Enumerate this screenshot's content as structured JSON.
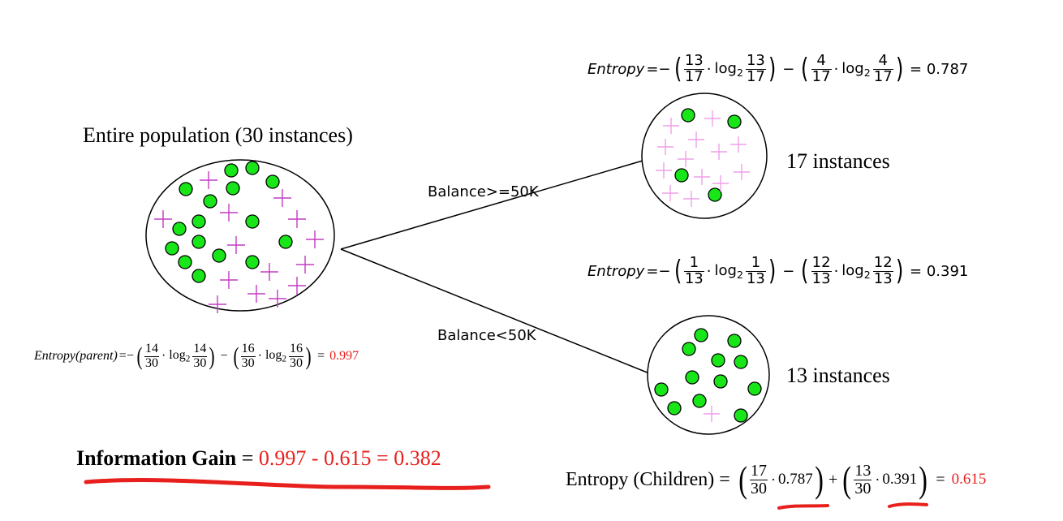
{
  "title_root": "Entire population (30 instances)",
  "labels": {
    "left_node": "17 instances",
    "right_node": "13 instances",
    "edge_top": "Balance>=50K",
    "edge_bottom": "Balance<50K"
  },
  "entropy_top": {
    "prefix": "Entropy",
    "eq_neg": "=−",
    "f1_num": "13",
    "f1_den": "17",
    "f2_num": "13",
    "f2_den": "17",
    "f3_num": "4",
    "f3_den": "17",
    "f4_num": "4",
    "f4_den": "17",
    "dot": "·",
    "log": "log",
    "logsub": "2",
    "minus": "−",
    "result": "= 0.787"
  },
  "entropy_bottom": {
    "prefix": "Entropy",
    "eq_neg": "=−",
    "f1_num": "1",
    "f1_den": "13",
    "f2_num": "1",
    "f2_den": "13",
    "f3_num": "12",
    "f3_den": "13",
    "f4_num": "12",
    "f4_den": "13",
    "dot": "·",
    "log": "log",
    "logsub": "2",
    "minus": "−",
    "result": "= 0.391"
  },
  "entropy_parent": {
    "prefix": "Entropy(parent)",
    "eq_neg": "=−",
    "f1_num": "14",
    "f1_den": "30",
    "f2_num": "14",
    "f2_den": "30",
    "f3_num": "16",
    "f3_den": "30",
    "f4_num": "16",
    "f4_den": "30",
    "dot": "·",
    "log": "log",
    "logsub": "2",
    "minus": "−",
    "eq": "=",
    "result": "0.997"
  },
  "info_gain": {
    "label": "Information Gain",
    "eq1": " = ",
    "expr": "0.997 - 0.615",
    "eq2": " = ",
    "result": "0.382"
  },
  "entropy_children": {
    "label": "Entropy (Children) =",
    "f1_num": "17",
    "f1_den": "30",
    "v1": "0.787",
    "plus": "+",
    "f2_num": "13",
    "f2_den": "30",
    "v2": "0.391",
    "eq": "=",
    "result": "0.615",
    "dot": "·"
  },
  "colors": {
    "green": "#19e619",
    "plus_dark": "#c23bc2",
    "plus_light": "#ef9fe8",
    "red": "#e8201d"
  }
}
